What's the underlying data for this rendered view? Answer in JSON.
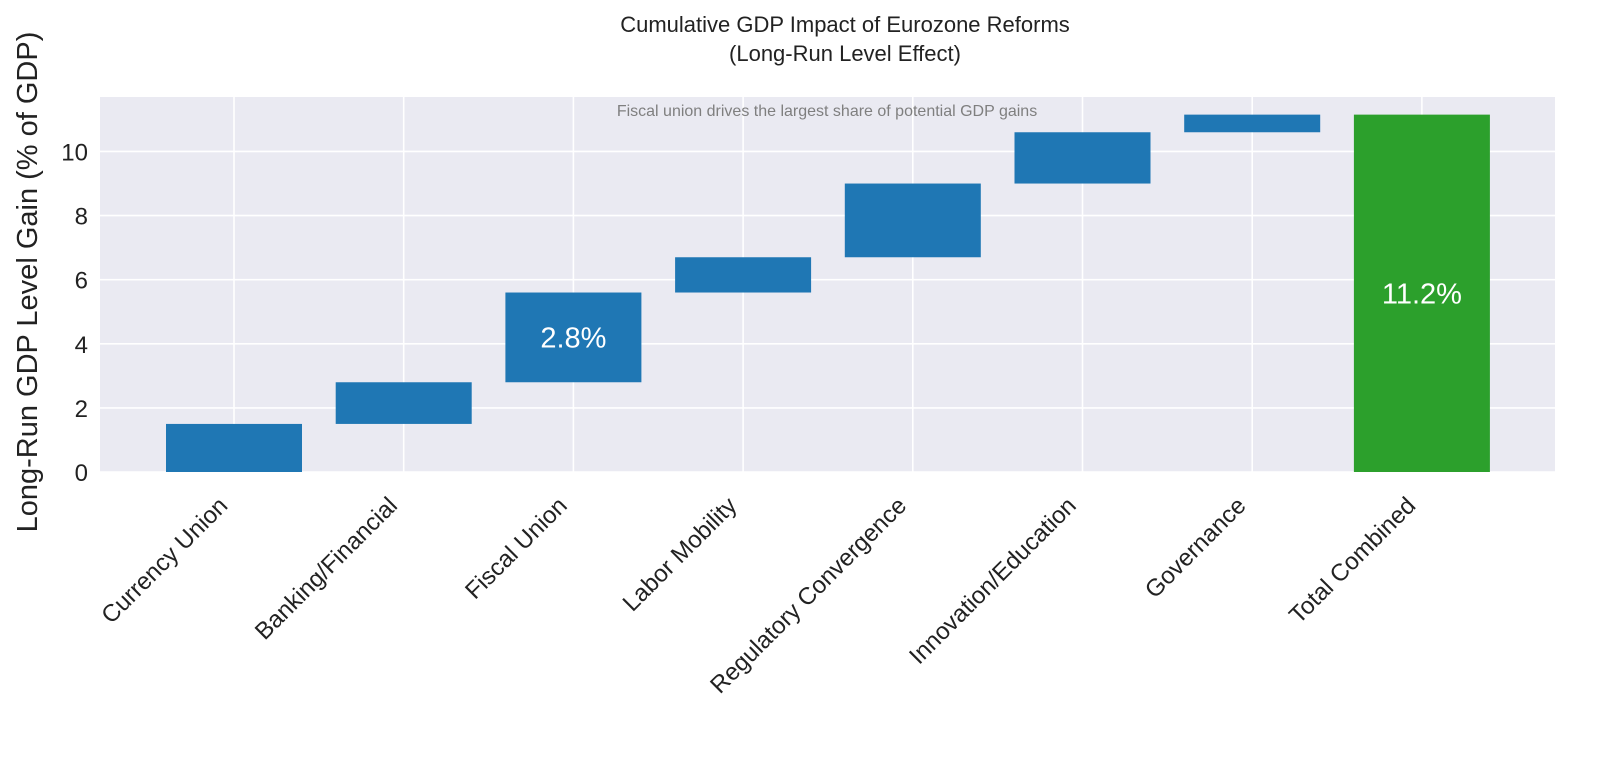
{
  "chart_data": {
    "type": "bar",
    "title_line1": "Cumulative GDP Impact of Eurozone Reforms",
    "title_line2": "(Long-Run Level Effect)",
    "annotation": "Fiscal union drives the largest share of potential GDP gains",
    "ylabel": "Long-Run GDP Level Gain (% of GDP)",
    "xlabel": "",
    "ylim": [
      0,
      11.7
    ],
    "yticks": [
      0,
      2,
      4,
      6,
      8,
      10
    ],
    "grid": true,
    "categories": [
      "Currency Union",
      "Banking/Financial",
      "Fiscal Union",
      "Labor Mobility",
      "Regulatory Convergence",
      "Innovation/Education",
      "Governance",
      "Total Combined"
    ],
    "bars": [
      {
        "category": "Currency Union",
        "start": 0,
        "end": 1.5
      },
      {
        "category": "Banking/Financial",
        "start": 1.5,
        "end": 2.8
      },
      {
        "category": "Fiscal Union",
        "start": 2.8,
        "end": 5.6
      },
      {
        "category": "Labor Mobility",
        "start": 5.6,
        "end": 6.7
      },
      {
        "category": "Regulatory Convergence",
        "start": 6.7,
        "end": 9.0
      },
      {
        "category": "Innovation/Education",
        "start": 9.0,
        "end": 10.6
      },
      {
        "category": "Governance",
        "start": 10.6,
        "end": 11.15
      },
      {
        "category": "Total Combined",
        "start": 0,
        "end": 11.15
      }
    ],
    "data_labels": [
      {
        "category": "Fiscal Union",
        "text": "2.8%"
      },
      {
        "category": "Total Combined",
        "text": "11.2%"
      }
    ],
    "colors": {
      "step": "#1f77b4",
      "total": "#2ca02c",
      "background": "#eaeaf2",
      "grid": "#ffffff"
    }
  }
}
